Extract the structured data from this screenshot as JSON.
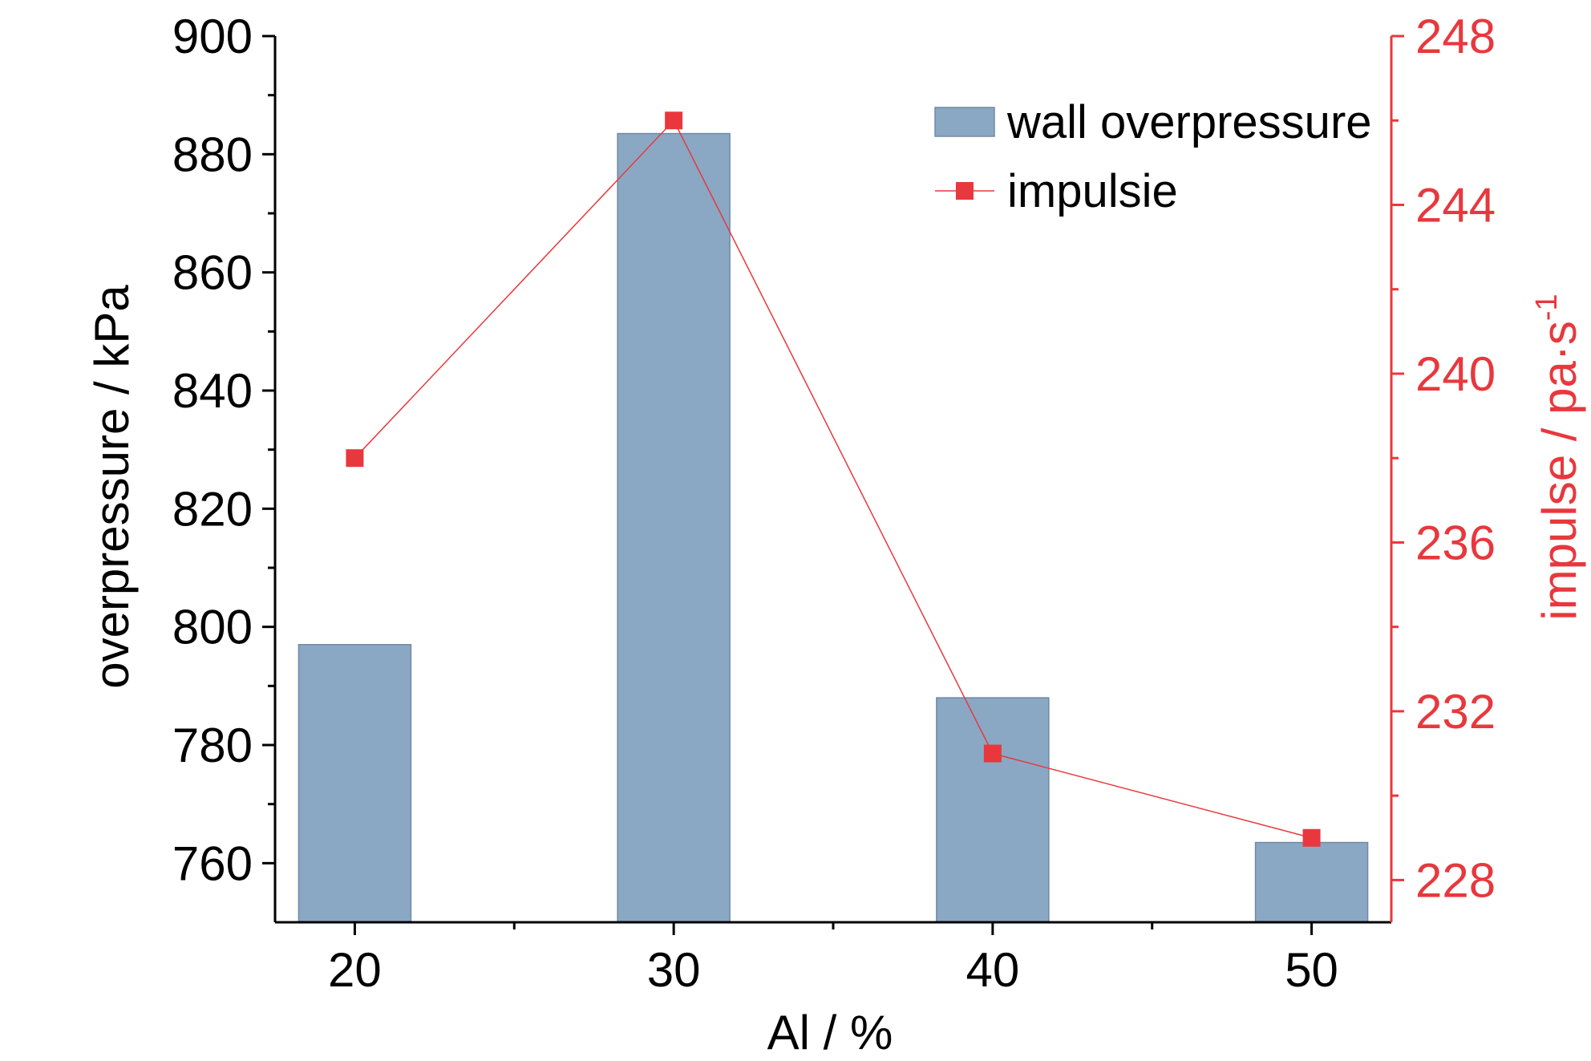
{
  "chart_data": {
    "type": "bar",
    "categories": [
      "20",
      "30",
      "40",
      "50"
    ],
    "x": [
      20,
      30,
      40,
      50
    ],
    "xlabel": "Al / %",
    "xticks": [
      20,
      30,
      40,
      50
    ],
    "xlim": [
      17.5,
      52.5
    ],
    "y_left": {
      "label": "overpressure / kPa",
      "lim": [
        750,
        900
      ],
      "ticks": [
        760,
        780,
        800,
        820,
        840,
        860,
        880,
        900
      ]
    },
    "y_right": {
      "label": "impulse / pa·s",
      "label_superscript": "-1",
      "lim": [
        227,
        248
      ],
      "ticks": [
        228,
        232,
        236,
        240,
        244,
        248
      ],
      "color": "#e8383d"
    },
    "series": [
      {
        "name": "wall overpressure",
        "type": "bar",
        "axis": "left",
        "color": "#8aa8c4",
        "values": [
          797,
          883.5,
          788,
          763.5
        ]
      },
      {
        "name": "impulsie",
        "type": "line",
        "axis": "right",
        "color": "#e8383d",
        "marker": "square",
        "values": [
          238,
          246,
          231,
          229
        ]
      }
    ],
    "legend_position": "top-right",
    "grid": false
  }
}
